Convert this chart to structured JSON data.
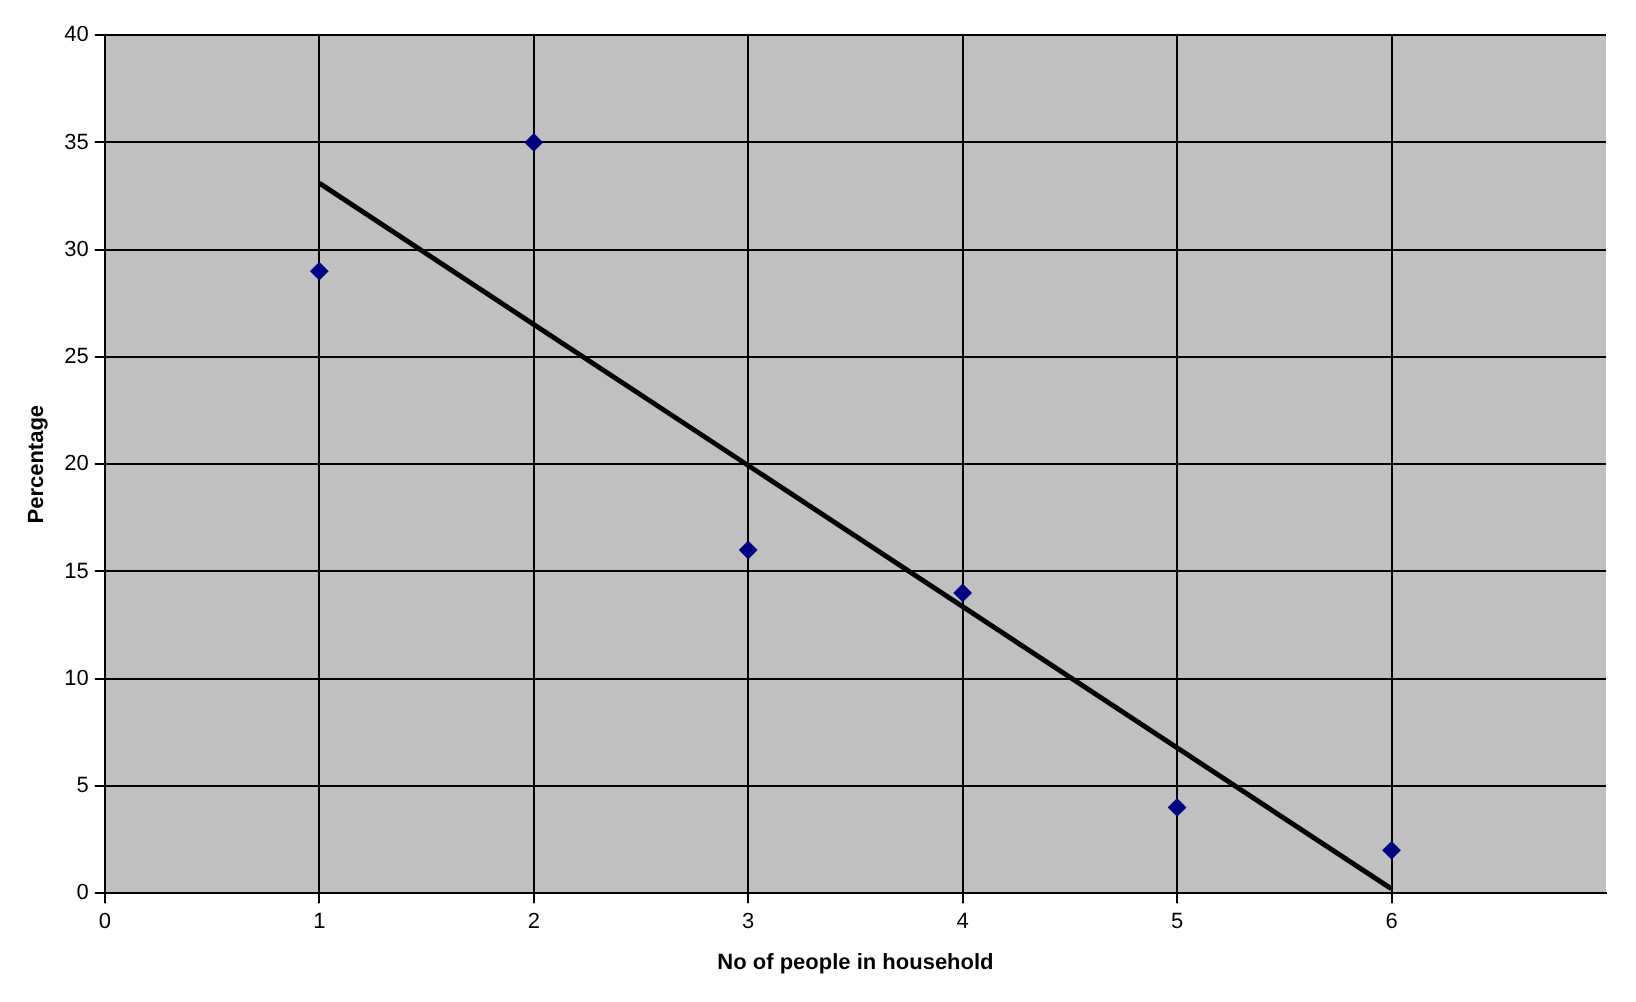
{
  "chart_data": {
    "type": "scatter",
    "xlabel": "No of people in household",
    "ylabel": "Percentage",
    "xlim": [
      0,
      7
    ],
    "xticks": [
      0,
      1,
      2,
      3,
      4,
      5,
      6
    ],
    "ylim": [
      0,
      40
    ],
    "yticks": [
      0,
      5,
      10,
      15,
      20,
      25,
      30,
      35,
      40
    ],
    "grid": true,
    "legend": false,
    "marker": "diamond",
    "series": [
      {
        "type": "scatter",
        "color": "#000080",
        "x": [
          1,
          2,
          3,
          4,
          5,
          6
        ],
        "values": [
          29,
          35,
          16,
          14,
          4,
          2
        ]
      },
      {
        "type": "line",
        "color": "#000000",
        "x": [
          1,
          6
        ],
        "values": [
          33.1,
          0.2
        ],
        "line_style": "solid",
        "marker": "none"
      }
    ]
  }
}
